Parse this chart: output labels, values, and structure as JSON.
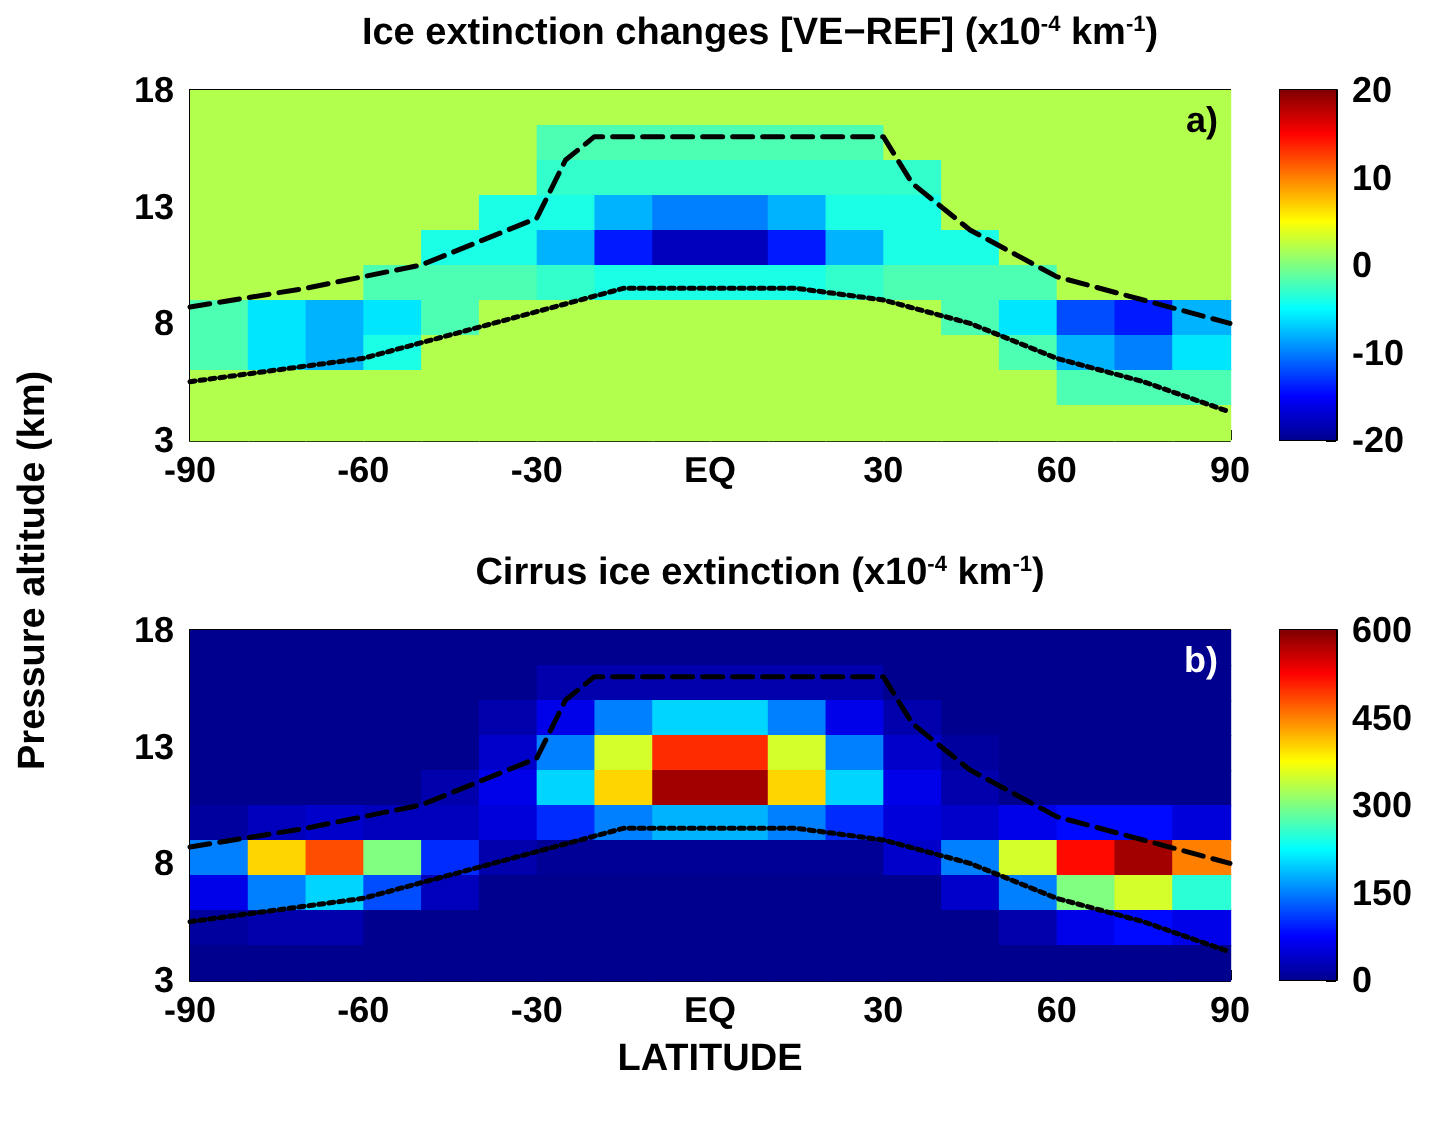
{
  "chart_data": [
    {
      "type": "heatmap",
      "title": "Ice extinction changes [VE−REF] (x10$^{-4}$ km$^{-1}$)",
      "ylabel": "Pressure altitude (km)",
      "annotations": [
        "a)"
      ],
      "x": [
        -85,
        -75,
        -65,
        -55,
        -45,
        -35,
        -25,
        -15,
        -5,
        5,
        15,
        25,
        35,
        45,
        55,
        65,
        75,
        85
      ],
      "cells": [
        [
          2,
          2,
          2,
          2,
          2,
          2,
          2,
          2,
          2,
          2,
          2,
          2,
          2,
          2,
          2,
          2,
          2,
          2
        ],
        [
          2,
          2,
          2,
          2,
          2,
          2,
          -2,
          -2,
          -2,
          -2,
          -2,
          -2,
          2,
          2,
          2,
          2,
          2,
          2
        ],
        [
          2,
          2,
          2,
          2,
          2,
          2,
          -3,
          -3,
          -3,
          -3,
          -3,
          -3,
          -3,
          2,
          2,
          2,
          2,
          2
        ],
        [
          2,
          2,
          2,
          2,
          2,
          -4,
          -4,
          -8,
          -10,
          -10,
          -8,
          -4,
          -4,
          2,
          2,
          2,
          2,
          2
        ],
        [
          2,
          2,
          2,
          2,
          -4,
          -4,
          -8,
          -14,
          -18,
          -18,
          -14,
          -8,
          -4,
          -4,
          2,
          2,
          2,
          2
        ],
        [
          2,
          2,
          2,
          -2,
          -2,
          -2,
          -3,
          -4,
          -4,
          -4,
          -4,
          -3,
          -2,
          -2,
          -2,
          2,
          2,
          2
        ],
        [
          -2,
          -6,
          -8,
          -6,
          -2,
          2,
          2,
          2,
          2,
          2,
          2,
          2,
          2,
          -2,
          -6,
          -12,
          -14,
          -8
        ],
        [
          -2,
          -6,
          -8,
          -4,
          2,
          2,
          2,
          2,
          2,
          2,
          2,
          2,
          2,
          2,
          -2,
          -8,
          -10,
          -6
        ],
        [
          2,
          2,
          2,
          2,
          2,
          2,
          2,
          2,
          2,
          2,
          2,
          2,
          2,
          2,
          2,
          -2,
          -2,
          -2
        ],
        [
          2,
          2,
          2,
          2,
          2,
          2,
          2,
          2,
          2,
          2,
          2,
          2,
          2,
          2,
          2,
          2,
          2,
          2
        ]
      ],
      "clim": [
        -20,
        20
      ],
      "cticks": [
        -20,
        -10,
        0,
        10,
        20
      ],
      "xlim": [
        -90,
        90
      ],
      "xticks": [
        -90,
        -60,
        -30,
        {
          "value": 0,
          "label": "EQ"
        },
        30,
        60,
        90
      ],
      "ylim": [
        3,
        18
      ],
      "yticks": [
        3,
        8,
        13,
        18
      ],
      "series": [
        {
          "type": "line",
          "color": "#000000",
          "line_style": "dashed",
          "x": [
            -90,
            -70,
            -50,
            -40,
            -30,
            -25,
            -20,
            30,
            35,
            45,
            60,
            90
          ],
          "values": [
            8.7,
            9.5,
            10.5,
            11.5,
            12.5,
            15,
            16,
            16,
            14,
            12,
            10,
            8
          ]
        },
        {
          "type": "line",
          "color": "#000000",
          "line_style": "dotted",
          "x": [
            -90,
            -60,
            -45,
            -30,
            -15,
            15,
            30,
            45,
            60,
            75,
            90
          ],
          "values": [
            5.5,
            6.5,
            7.5,
            8.5,
            9.5,
            9.5,
            9,
            8,
            6.5,
            5.5,
            4.2
          ]
        }
      ]
    },
    {
      "type": "heatmap",
      "title": "Cirrus ice extinction (x10$^{-4}$ km$^{-1}$)",
      "xlabel": "LATITUDE",
      "annotations": [
        "b)"
      ],
      "x": [
        -85,
        -75,
        -65,
        -55,
        -45,
        -35,
        -25,
        -15,
        -5,
        5,
        15,
        25,
        35,
        45,
        55,
        65,
        75,
        85
      ],
      "cells": [
        [
          0,
          0,
          0,
          0,
          0,
          0,
          0,
          0,
          0,
          0,
          0,
          0,
          0,
          0,
          0,
          0,
          0,
          0
        ],
        [
          0,
          0,
          0,
          0,
          0,
          0,
          20,
          20,
          20,
          20,
          20,
          20,
          0,
          0,
          0,
          0,
          0,
          0
        ],
        [
          0,
          0,
          0,
          0,
          0,
          20,
          60,
          150,
          200,
          200,
          150,
          60,
          20,
          0,
          0,
          0,
          0,
          0
        ],
        [
          0,
          0,
          0,
          0,
          0,
          40,
          150,
          350,
          500,
          500,
          350,
          150,
          40,
          10,
          0,
          0,
          0,
          0
        ],
        [
          0,
          0,
          0,
          0,
          20,
          60,
          200,
          400,
          580,
          580,
          400,
          200,
          60,
          20,
          0,
          0,
          0,
          0
        ],
        [
          10,
          30,
          40,
          30,
          30,
          50,
          100,
          150,
          180,
          180,
          150,
          100,
          50,
          40,
          60,
          80,
          80,
          50
        ],
        [
          150,
          400,
          480,
          300,
          100,
          20,
          5,
          5,
          5,
          5,
          5,
          5,
          40,
          150,
          350,
          520,
          580,
          450
        ],
        [
          60,
          150,
          200,
          120,
          30,
          0,
          0,
          0,
          0,
          0,
          0,
          0,
          0,
          40,
          150,
          300,
          350,
          250
        ],
        [
          10,
          20,
          20,
          0,
          0,
          0,
          0,
          0,
          0,
          0,
          0,
          0,
          0,
          0,
          20,
          60,
          80,
          60
        ],
        [
          0,
          0,
          0,
          0,
          0,
          0,
          0,
          0,
          0,
          0,
          0,
          0,
          0,
          0,
          0,
          0,
          0,
          0
        ]
      ],
      "clim": [
        0,
        600
      ],
      "cticks": [
        0,
        150,
        300,
        450,
        600
      ],
      "xlim": [
        -90,
        90
      ],
      "xticks": [
        -90,
        -60,
        -30,
        {
          "value": 0,
          "label": "EQ"
        },
        30,
        60,
        90
      ],
      "ylim": [
        3,
        18
      ],
      "yticks": [
        3,
        8,
        13,
        18
      ],
      "series": [
        {
          "type": "line",
          "color": "#000000",
          "line_style": "dashed",
          "x": [
            -90,
            -70,
            -50,
            -40,
            -30,
            -25,
            -20,
            30,
            35,
            45,
            60,
            90
          ],
          "values": [
            8.7,
            9.5,
            10.5,
            11.5,
            12.5,
            15,
            16,
            16,
            14,
            12,
            10,
            8
          ]
        },
        {
          "type": "line",
          "color": "#000000",
          "line_style": "dotted",
          "x": [
            -90,
            -60,
            -45,
            -30,
            -15,
            15,
            30,
            45,
            60,
            75,
            90
          ],
          "values": [
            5.5,
            6.5,
            7.5,
            8.5,
            9.5,
            9.5,
            9,
            8,
            6.5,
            5.5,
            4.2
          ]
        }
      ]
    }
  ]
}
